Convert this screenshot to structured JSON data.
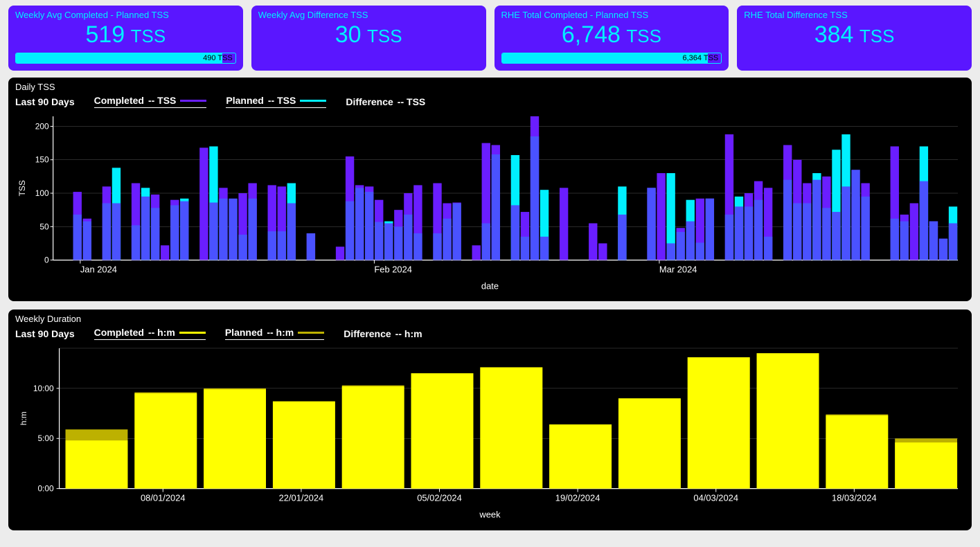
{
  "colors": {
    "page_bg": "#ececec",
    "card_bg": "#5a16ff",
    "cyan": "#00f0ff",
    "panel_bg": "#000000",
    "white": "#ffffff",
    "bar_completed": "#4a52ff",
    "bar_planned_overlay": "#6a1eff",
    "bar_planned_cyan": "#00f0ff",
    "grid": "#666666",
    "yellow": "#ffff00",
    "olive": "#bdb100"
  },
  "kpi": [
    {
      "title": "Weekly Avg Completed - Planned TSS",
      "value": "519",
      "unit": "TSS",
      "bar": {
        "fill_pct": 94,
        "text": "490 TSS"
      }
    },
    {
      "title": "Weekly Avg Difference TSS",
      "value": "30",
      "unit": "TSS"
    },
    {
      "title": "RHE Total Completed - Planned TSS",
      "value": "6,748",
      "unit": "TSS",
      "bar": {
        "fill_pct": 94,
        "text": "6,364 TSS"
      }
    },
    {
      "title": "RHE Total Difference TSS",
      "value": "384",
      "unit": "TSS"
    }
  ],
  "daily": {
    "title": "Daily TSS",
    "subtitle": "Last 90 Days",
    "legend": {
      "completed": {
        "label": "Completed",
        "value_label": "-- TSS",
        "color": "#6a1eff"
      },
      "planned": {
        "label": "Planned",
        "value_label": "-- TSS",
        "color": "#00f0ff"
      },
      "difference": {
        "label": "Difference",
        "value_label": "-- TSS"
      }
    },
    "y": {
      "label": "TSS",
      "min": 0,
      "max": 215,
      "ticks": [
        0,
        50,
        100,
        150,
        200
      ]
    },
    "x": {
      "label": "date",
      "month_ticks": [
        {
          "pos": 0.03,
          "label": "Jan 2024"
        },
        {
          "pos": 0.355,
          "label": "Feb 2024"
        },
        {
          "pos": 0.67,
          "label": "Mar 2024"
        }
      ]
    },
    "bars": [
      {
        "c": 0,
        "p": 0
      },
      {
        "c": 0,
        "p": 0
      },
      {
        "c": 68,
        "p": 102
      },
      {
        "c": 58,
        "p": 62
      },
      {
        "c": 0,
        "p": 0
      },
      {
        "c": 85,
        "p": 110
      },
      {
        "c": 85,
        "p": 138,
        "cy": true
      },
      {
        "c": 0,
        "p": 0
      },
      {
        "c": 52,
        "p": 115
      },
      {
        "c": 95,
        "p": 108,
        "cy": true
      },
      {
        "c": 78,
        "p": 98
      },
      {
        "c": 0,
        "p": 22
      },
      {
        "c": 82,
        "p": 90
      },
      {
        "c": 88,
        "p": 92,
        "cy": true
      },
      {
        "c": 0,
        "p": 0
      },
      {
        "c": 0,
        "p": 168
      },
      {
        "c": 86,
        "p": 170,
        "cy": true
      },
      {
        "c": 92,
        "p": 108
      },
      {
        "c": 92,
        "p": 0
      },
      {
        "c": 38,
        "p": 100
      },
      {
        "c": 92,
        "p": 115
      },
      {
        "c": 0,
        "p": 0
      },
      {
        "c": 43,
        "p": 112
      },
      {
        "c": 43,
        "p": 110
      },
      {
        "c": 85,
        "p": 115,
        "cy": true
      },
      {
        "c": 0,
        "p": 0
      },
      {
        "c": 40,
        "p": 40
      },
      {
        "c": 0,
        "p": 0
      },
      {
        "c": 0,
        "p": 0
      },
      {
        "c": 0,
        "p": 20
      },
      {
        "c": 88,
        "p": 155
      },
      {
        "c": 108,
        "p": 112
      },
      {
        "c": 102,
        "p": 110
      },
      {
        "c": 57,
        "p": 90
      },
      {
        "c": 55,
        "p": 58,
        "cy": true
      },
      {
        "c": 50,
        "p": 75
      },
      {
        "c": 68,
        "p": 100
      },
      {
        "c": 40,
        "p": 112
      },
      {
        "c": 0,
        "p": 0
      },
      {
        "c": 40,
        "p": 115
      },
      {
        "c": 62,
        "p": 85
      },
      {
        "c": 85,
        "p": 86
      },
      {
        "c": 0,
        "p": 0
      },
      {
        "c": 0,
        "p": 22
      },
      {
        "c": 55,
        "p": 175
      },
      {
        "c": 158,
        "p": 172
      },
      {
        "c": 0,
        "p": 0
      },
      {
        "c": 82,
        "p": 157,
        "cy": true
      },
      {
        "c": 35,
        "p": 72
      },
      {
        "c": 185,
        "p": 215
      },
      {
        "c": 35,
        "p": 105,
        "cy": true
      },
      {
        "c": 0,
        "p": 0
      },
      {
        "c": 0,
        "p": 108
      },
      {
        "c": 0,
        "p": 0
      },
      {
        "c": 0,
        "p": 0
      },
      {
        "c": 0,
        "p": 55
      },
      {
        "c": 0,
        "p": 25
      },
      {
        "c": 0,
        "p": 0
      },
      {
        "c": 68,
        "p": 110,
        "cy": true
      },
      {
        "c": 0,
        "p": 0
      },
      {
        "c": 0,
        "p": 0
      },
      {
        "c": 108,
        "p": 108
      },
      {
        "c": 0,
        "p": 130
      },
      {
        "c": 25,
        "p": 130,
        "cy": true
      },
      {
        "c": 42,
        "p": 48
      },
      {
        "c": 58,
        "p": 90,
        "cy": true
      },
      {
        "c": 26,
        "p": 92
      },
      {
        "c": 92,
        "p": 92
      },
      {
        "c": 0,
        "p": 0
      },
      {
        "c": 68,
        "p": 188
      },
      {
        "c": 80,
        "p": 95,
        "cy": true
      },
      {
        "c": 80,
        "p": 100
      },
      {
        "c": 90,
        "p": 118
      },
      {
        "c": 35,
        "p": 108
      },
      {
        "c": 0,
        "p": 0
      },
      {
        "c": 120,
        "p": 172
      },
      {
        "c": 85,
        "p": 150
      },
      {
        "c": 85,
        "p": 115
      },
      {
        "c": 120,
        "p": 130,
        "cy": true
      },
      {
        "c": 78,
        "p": 125
      },
      {
        "c": 72,
        "p": 165,
        "cy": true
      },
      {
        "c": 110,
        "p": 188,
        "cy": true
      },
      {
        "c": 135,
        "p": 95
      },
      {
        "c": 95,
        "p": 115
      },
      {
        "c": 0,
        "p": 0
      },
      {
        "c": 0,
        "p": 0
      },
      {
        "c": 62,
        "p": 170
      },
      {
        "c": 58,
        "p": 68
      },
      {
        "c": 0,
        "p": 85
      },
      {
        "c": 118,
        "p": 170,
        "cy": true
      },
      {
        "c": 58,
        "p": 58
      },
      {
        "c": 32,
        "p": 32
      },
      {
        "c": 55,
        "p": 80,
        "cy": true
      }
    ]
  },
  "weekly": {
    "title": "Weekly Duration",
    "subtitle": "Last 90 Days",
    "legend": {
      "completed": {
        "label": "Completed",
        "value_label": "-- h:m",
        "color": "#ffff00"
      },
      "planned": {
        "label": "Planned",
        "value_label": "-- h:m",
        "color": "#bdb100"
      },
      "difference": {
        "label": "Difference",
        "value_label": "-- h:m"
      }
    },
    "y": {
      "label": "h:m",
      "min": 0,
      "max": 14,
      "ticks": [
        {
          "v": 0,
          "label": "0:00"
        },
        {
          "v": 5,
          "label": "5:00"
        },
        {
          "v": 10,
          "label": "10:00"
        }
      ]
    },
    "x": {
      "label": "week",
      "ticks": [
        "08/01/2024",
        "22/01/2024",
        "05/02/2024",
        "19/02/2024",
        "04/03/2024",
        "18/03/2024"
      ]
    },
    "bars": [
      {
        "c": 4.8,
        "p": 5.9
      },
      {
        "c": 9.5,
        "p": 9.6
      },
      {
        "c": 9.9,
        "p": 10.0
      },
      {
        "c": 8.7,
        "p": 8.7
      },
      {
        "c": 10.2,
        "p": 10.3
      },
      {
        "c": 11.5,
        "p": 11.5
      },
      {
        "c": 12.1,
        "p": 12.1
      },
      {
        "c": 6.4,
        "p": 6.4
      },
      {
        "c": 9.0,
        "p": 9.0
      },
      {
        "c": 13.1,
        "p": 13.1
      },
      {
        "c": 13.5,
        "p": 13.5
      },
      {
        "c": 7.3,
        "p": 7.4
      },
      {
        "c": 4.6,
        "p": 5.0
      }
    ]
  }
}
